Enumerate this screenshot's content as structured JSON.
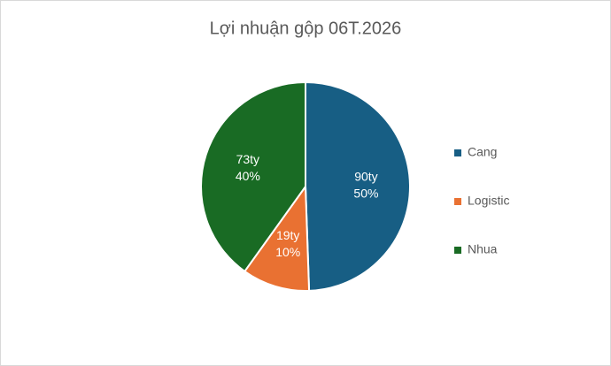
{
  "chart_data": {
    "type": "pie",
    "title": "Lợi nhuận gộp 06T.2026",
    "categories": [
      "Cang",
      "Logistic",
      "Nhua"
    ],
    "values": [
      90,
      19,
      73
    ],
    "value_labels": [
      "90ty",
      "19ty",
      "73ty"
    ],
    "percent_labels": [
      "50%",
      "10%",
      "40%"
    ],
    "colors": [
      "#175e84",
      "#e97132",
      "#196b24"
    ],
    "legend": "right"
  }
}
